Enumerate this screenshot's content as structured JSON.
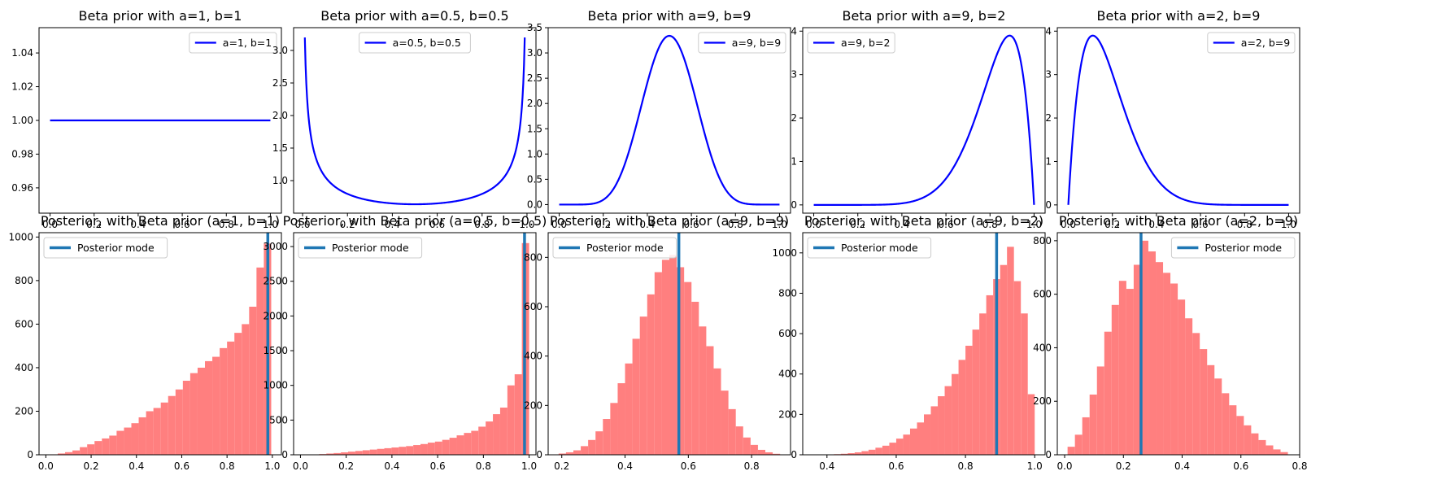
{
  "chart_data": [
    {
      "type": "line",
      "title": "Beta prior with a=1, b=1",
      "series": [
        {
          "name": "a=1, b=1",
          "dist": "beta",
          "a": 1,
          "b": 1,
          "color": "#0000ff"
        }
      ],
      "xlim": [
        -0.05,
        1.05
      ],
      "ylim": [
        0.945,
        1.055
      ],
      "xticks": [
        0,
        0.2,
        0.4,
        0.6,
        0.8,
        1.0
      ],
      "xtick_labels": [
        "0.0",
        "0.2",
        "0.4",
        "0.6",
        "0.8",
        "1.0"
      ],
      "yticks": [
        0.96,
        0.98,
        1.0,
        1.02,
        1.04
      ],
      "ytick_labels": [
        "0.96",
        "0.98",
        "1.00",
        "1.02",
        "1.04"
      ],
      "legend_position": "top-right"
    },
    {
      "type": "line",
      "title": "Beta prior with a=0.5, b=0.5",
      "series": [
        {
          "name": "a=0.5, b=0.5",
          "dist": "beta",
          "a": 0.5,
          "b": 0.5,
          "color": "#0000ff",
          "x_range": [
            0.01,
            0.99
          ]
        }
      ],
      "xlim": [
        -0.04,
        1.04
      ],
      "ylim": [
        0.5,
        3.35
      ],
      "xticks": [
        0,
        0.2,
        0.4,
        0.6,
        0.8,
        1.0
      ],
      "xtick_labels": [
        "0.0",
        "0.2",
        "0.4",
        "0.6",
        "0.8",
        "1.0"
      ],
      "yticks": [
        1.0,
        1.5,
        2.0,
        2.5,
        3.0
      ],
      "ytick_labels": [
        "1.0",
        "1.5",
        "2.0",
        "2.5",
        "3.0"
      ],
      "legend_position": "top-center"
    },
    {
      "type": "line",
      "title": "Beta prior with a=9, b=9",
      "series": [
        {
          "name": "a=9, b=9",
          "dist": "beta",
          "a": 9,
          "b": 9,
          "color": "#0000ff"
        }
      ],
      "xlim": [
        -0.05,
        1.05
      ],
      "ylim": [
        -0.17,
        3.5
      ],
      "xticks": [
        0,
        0.2,
        0.4,
        0.6,
        0.8,
        1.0
      ],
      "xtick_labels": [
        "0.0",
        "0.2",
        "0.4",
        "0.6",
        "0.8",
        "1.0"
      ],
      "yticks": [
        0,
        0.5,
        1.0,
        1.5,
        2.0,
        2.5,
        3.0,
        3.5
      ],
      "ytick_labels": [
        "0.0",
        "0.5",
        "1.0",
        "1.5",
        "2.0",
        "2.5",
        "3.0",
        "3.5"
      ],
      "legend_position": "top-right"
    },
    {
      "type": "line",
      "title": "Beta prior with a=9, b=2",
      "series": [
        {
          "name": "a=9, b=2",
          "dist": "beta",
          "a": 9,
          "b": 2,
          "color": "#0000ff"
        }
      ],
      "xlim": [
        -0.05,
        1.05
      ],
      "ylim": [
        -0.19,
        4.08
      ],
      "xticks": [
        0,
        0.2,
        0.4,
        0.6,
        0.8,
        1.0
      ],
      "xtick_labels": [
        "0.0",
        "0.2",
        "0.4",
        "0.6",
        "0.8",
        "1.0"
      ],
      "yticks": [
        0,
        1,
        2,
        3,
        4
      ],
      "ytick_labels": [
        "0",
        "1",
        "2",
        "3",
        "4"
      ],
      "legend_position": "top-left"
    },
    {
      "type": "line",
      "title": "Beta prior with a=2, b=9",
      "series": [
        {
          "name": "a=2, b=9",
          "dist": "beta",
          "a": 2,
          "b": 9,
          "color": "#0000ff"
        }
      ],
      "xlim": [
        -0.05,
        1.05
      ],
      "ylim": [
        -0.19,
        4.08
      ],
      "xticks": [
        0,
        0.2,
        0.4,
        0.6,
        0.8,
        1.0
      ],
      "xtick_labels": [
        "0.0",
        "0.2",
        "0.4",
        "0.6",
        "0.8",
        "1.0"
      ],
      "yticks": [
        0,
        1,
        2,
        3,
        4
      ],
      "ytick_labels": [
        "0",
        "1",
        "2",
        "3",
        "4"
      ],
      "legend_position": "top-right"
    },
    {
      "type": "bar",
      "title": "Posterior, with Beta prior (a=1, b=1)",
      "bins": [
        0.02,
        0.0525,
        0.085,
        0.1175,
        0.15,
        0.1825,
        0.215,
        0.2475,
        0.28,
        0.3125,
        0.345,
        0.3775,
        0.41,
        0.4425,
        0.475,
        0.5075,
        0.54,
        0.5725,
        0.605,
        0.6375,
        0.67,
        0.7025,
        0.735,
        0.7675,
        0.8,
        0.8325,
        0.865,
        0.8975,
        0.93,
        0.9625,
        0.995
      ],
      "counts": [
        2,
        6,
        12,
        20,
        35,
        48,
        63,
        75,
        88,
        110,
        125,
        145,
        172,
        200,
        215,
        240,
        270,
        300,
        340,
        375,
        400,
        430,
        450,
        490,
        520,
        560,
        600,
        680,
        860,
        970
      ],
      "mode": 0.98,
      "bar_color": "#ff7f7f",
      "mode_color": "#1f77b4",
      "legend": "Posterior mode",
      "legend_position": "top-left",
      "xlim": [
        -0.03,
        1.04
      ],
      "ylim": [
        0,
        1020
      ],
      "xticks": [
        0,
        0.2,
        0.4,
        0.6,
        0.8,
        1.0
      ],
      "xtick_labels": [
        "0.0",
        "0.2",
        "0.4",
        "0.6",
        "0.8",
        "1.0"
      ],
      "yticks": [
        0,
        200,
        400,
        600,
        800,
        1000
      ],
      "ytick_labels": [
        "0",
        "200",
        "400",
        "600",
        "800",
        "1000"
      ]
    },
    {
      "type": "bar",
      "title": "Posterior, with Beta prior (a=0.5, b=0.5)",
      "bins": [
        0.05,
        0.0817,
        0.1133,
        0.145,
        0.1767,
        0.2083,
        0.24,
        0.2717,
        0.3033,
        0.335,
        0.3667,
        0.3983,
        0.43,
        0.4617,
        0.4933,
        0.525,
        0.5567,
        0.5883,
        0.62,
        0.6517,
        0.6833,
        0.715,
        0.7467,
        0.7783,
        0.81,
        0.8417,
        0.8733,
        0.905,
        0.9367,
        0.9683,
        1.0
      ],
      "counts": [
        5,
        10,
        18,
        25,
        35,
        45,
        55,
        65,
        75,
        85,
        95,
        105,
        115,
        125,
        140,
        155,
        175,
        190,
        215,
        245,
        280,
        315,
        345,
        405,
        480,
        585,
        680,
        1000,
        1160,
        3050
      ],
      "mode": 0.98,
      "bar_color": "#ff7f7f",
      "mode_color": "#1f77b4",
      "legend": "Posterior mode",
      "legend_position": "top-left",
      "xlim": [
        -0.03,
        1.03
      ],
      "ylim": [
        0,
        3200
      ],
      "xticks": [
        0,
        0.2,
        0.4,
        0.6,
        0.8,
        1.0
      ],
      "xtick_labels": [
        "0.0",
        "0.2",
        "0.4",
        "0.6",
        "0.8",
        "1.0"
      ],
      "yticks": [
        0,
        500,
        1000,
        1500,
        2000,
        2500,
        3000
      ],
      "ytick_labels": [
        "0",
        "500",
        "1000",
        "1500",
        "2000",
        "2500",
        "3000"
      ]
    },
    {
      "type": "bar",
      "title": "Posterior, with Beta prior (a=9, b=9)",
      "bins": [
        0.19,
        0.2133,
        0.2367,
        0.26,
        0.2833,
        0.3067,
        0.33,
        0.3533,
        0.3767,
        0.4,
        0.4233,
        0.4467,
        0.47,
        0.4933,
        0.5167,
        0.54,
        0.5633,
        0.5867,
        0.61,
        0.6333,
        0.6567,
        0.68,
        0.7033,
        0.7267,
        0.75,
        0.7733,
        0.7967,
        0.82,
        0.8433,
        0.8667,
        0.89
      ],
      "counts": [
        5,
        10,
        18,
        35,
        60,
        95,
        145,
        210,
        290,
        370,
        470,
        560,
        650,
        740,
        790,
        810,
        760,
        700,
        620,
        520,
        440,
        350,
        260,
        185,
        115,
        70,
        40,
        20,
        10,
        4
      ],
      "mode": 0.57,
      "bar_color": "#ff7f7f",
      "mode_color": "#1f77b4",
      "legend": "Posterior mode",
      "legend_position": "top-left",
      "xlim": [
        0.157,
        0.923
      ],
      "ylim": [
        0,
        900
      ],
      "xticks": [
        0.2,
        0.4,
        0.6,
        0.8
      ],
      "xtick_labels": [
        "0.2",
        "0.4",
        "0.6",
        "0.8"
      ],
      "yticks": [
        0,
        200,
        400,
        600,
        800
      ],
      "ytick_labels": [
        "0",
        "200",
        "400",
        "600",
        "800"
      ]
    },
    {
      "type": "bar",
      "title": "Posterior, with Beta prior (a=9, b=2)",
      "bins": [
        0.4,
        0.42,
        0.44,
        0.46,
        0.48,
        0.5,
        0.52,
        0.54,
        0.56,
        0.58,
        0.6,
        0.62,
        0.64,
        0.66,
        0.68,
        0.7,
        0.72,
        0.74,
        0.76,
        0.78,
        0.8,
        0.82,
        0.84,
        0.86,
        0.88,
        0.9,
        0.92,
        0.94,
        0.96,
        0.98,
        1.0
      ],
      "counts": [
        2,
        3,
        5,
        8,
        12,
        18,
        25,
        35,
        45,
        60,
        80,
        100,
        130,
        160,
        200,
        240,
        290,
        340,
        400,
        470,
        540,
        620,
        700,
        790,
        870,
        940,
        1030,
        860,
        700,
        300
      ],
      "mode": 0.89,
      "bar_color": "#ff7f7f",
      "mode_color": "#1f77b4",
      "legend": "Posterior mode",
      "legend_position": "top-left",
      "xlim": [
        0.33,
        1.03
      ],
      "ylim": [
        0,
        1100
      ],
      "xticks": [
        0.4,
        0.6,
        0.8,
        1.0
      ],
      "xtick_labels": [
        "0.4",
        "0.6",
        "0.8",
        "1.0"
      ],
      "yticks": [
        0,
        200,
        400,
        600,
        800,
        1000
      ],
      "ytick_labels": [
        "0",
        "200",
        "400",
        "600",
        "800",
        "1000"
      ]
    },
    {
      "type": "bar",
      "title": "Posterior, with Beta prior (a=2, b=9)",
      "bins": [
        0.01,
        0.035,
        0.06,
        0.085,
        0.11,
        0.135,
        0.16,
        0.185,
        0.21,
        0.235,
        0.26,
        0.285,
        0.31,
        0.335,
        0.36,
        0.385,
        0.41,
        0.435,
        0.46,
        0.485,
        0.51,
        0.535,
        0.56,
        0.585,
        0.61,
        0.635,
        0.66,
        0.685,
        0.71,
        0.735,
        0.76
      ],
      "counts": [
        30,
        75,
        140,
        225,
        330,
        460,
        560,
        650,
        620,
        710,
        800,
        760,
        720,
        680,
        640,
        580,
        510,
        455,
        395,
        335,
        285,
        230,
        185,
        145,
        110,
        80,
        55,
        35,
        20,
        10
      ],
      "mode": 0.26,
      "bar_color": "#ff7f7f",
      "mode_color": "#1f77b4",
      "legend": "Posterior mode",
      "legend_position": "top-right",
      "xlim": [
        -0.025,
        0.8
      ],
      "ylim": [
        0,
        830
      ],
      "xticks": [
        0,
        0.2,
        0.4,
        0.6,
        0.8
      ],
      "xtick_labels": [
        "0.0",
        "0.2",
        "0.4",
        "0.6",
        "0.8"
      ],
      "yticks": [
        0,
        200,
        400,
        600,
        800
      ],
      "ytick_labels": [
        "0",
        "200",
        "400",
        "600",
        "800"
      ]
    }
  ]
}
